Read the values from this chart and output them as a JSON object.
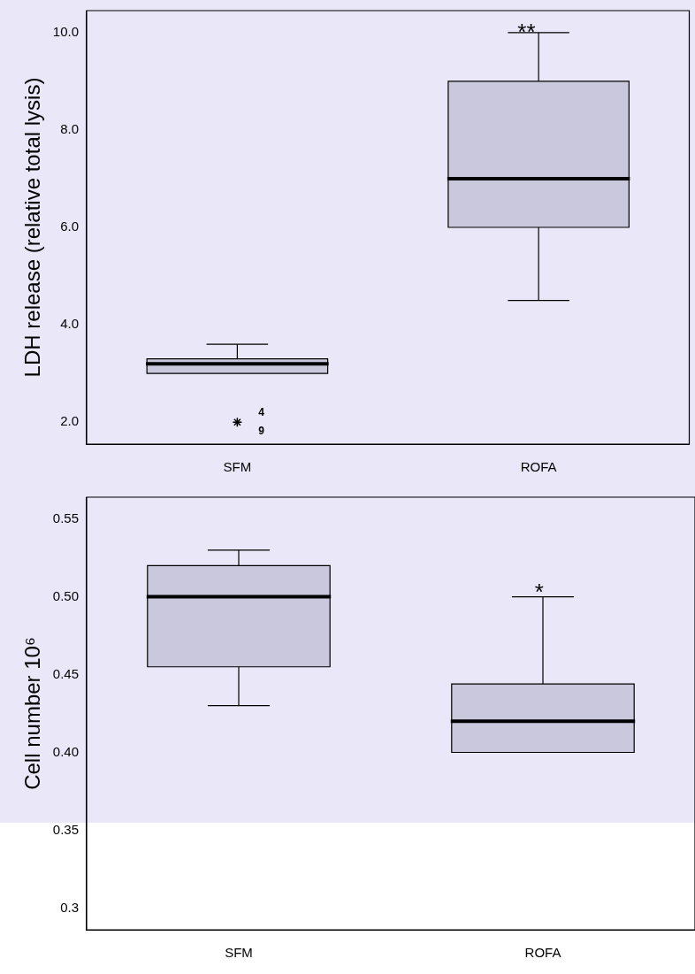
{
  "chart_data": [
    {
      "type": "box",
      "categories": [
        "SFM",
        "ROFA"
      ],
      "color": "#c9c8dc",
      "marker": "star",
      "ylabel": "LDH release (relative total lysis)",
      "ylim": [
        1.55,
        10.45
      ],
      "yticks": [
        {
          "value": 2,
          "label": "2.0"
        },
        {
          "value": 4,
          "label": "4.0"
        },
        {
          "value": 6,
          "label": "6.0"
        },
        {
          "value": 8,
          "label": "8.0"
        },
        {
          "value": 10,
          "label": "10.0"
        }
      ],
      "boxes": [
        {
          "low": 3.0,
          "q1": 3.0,
          "median": 3.2,
          "q3": 3.3,
          "high": 3.6,
          "outliers": [
            2.0
          ]
        },
        {
          "low": 4.5,
          "q1": 6.0,
          "median": 7.0,
          "q3": 9.0,
          "high": 10.0
        }
      ],
      "annotations": [
        "**",
        "4",
        "9"
      ]
    },
    {
      "type": "box",
      "categories": [
        "SFM",
        "ROFA"
      ],
      "color": "#c9c8dc",
      "ylabel": "Cell number 10⁶",
      "ylim": [
        0.286,
        0.564
      ],
      "yticks": [
        {
          "value": 0.3,
          "label": "0.3"
        },
        0.35,
        {
          "value": 0.4,
          "label": "0.40"
        },
        0.45,
        {
          "value": 0.5,
          "label": "0.50"
        },
        0.55
      ],
      "boxes": [
        {
          "low": 0.43,
          "q1": 0.455,
          "median": 0.5,
          "q3": 0.52,
          "high": 0.53
        },
        {
          "low": 0.4,
          "q1": 0.4,
          "median": 0.42,
          "q3": 0.444,
          "high": 0.5
        }
      ],
      "annotations": [
        "*"
      ]
    }
  ]
}
